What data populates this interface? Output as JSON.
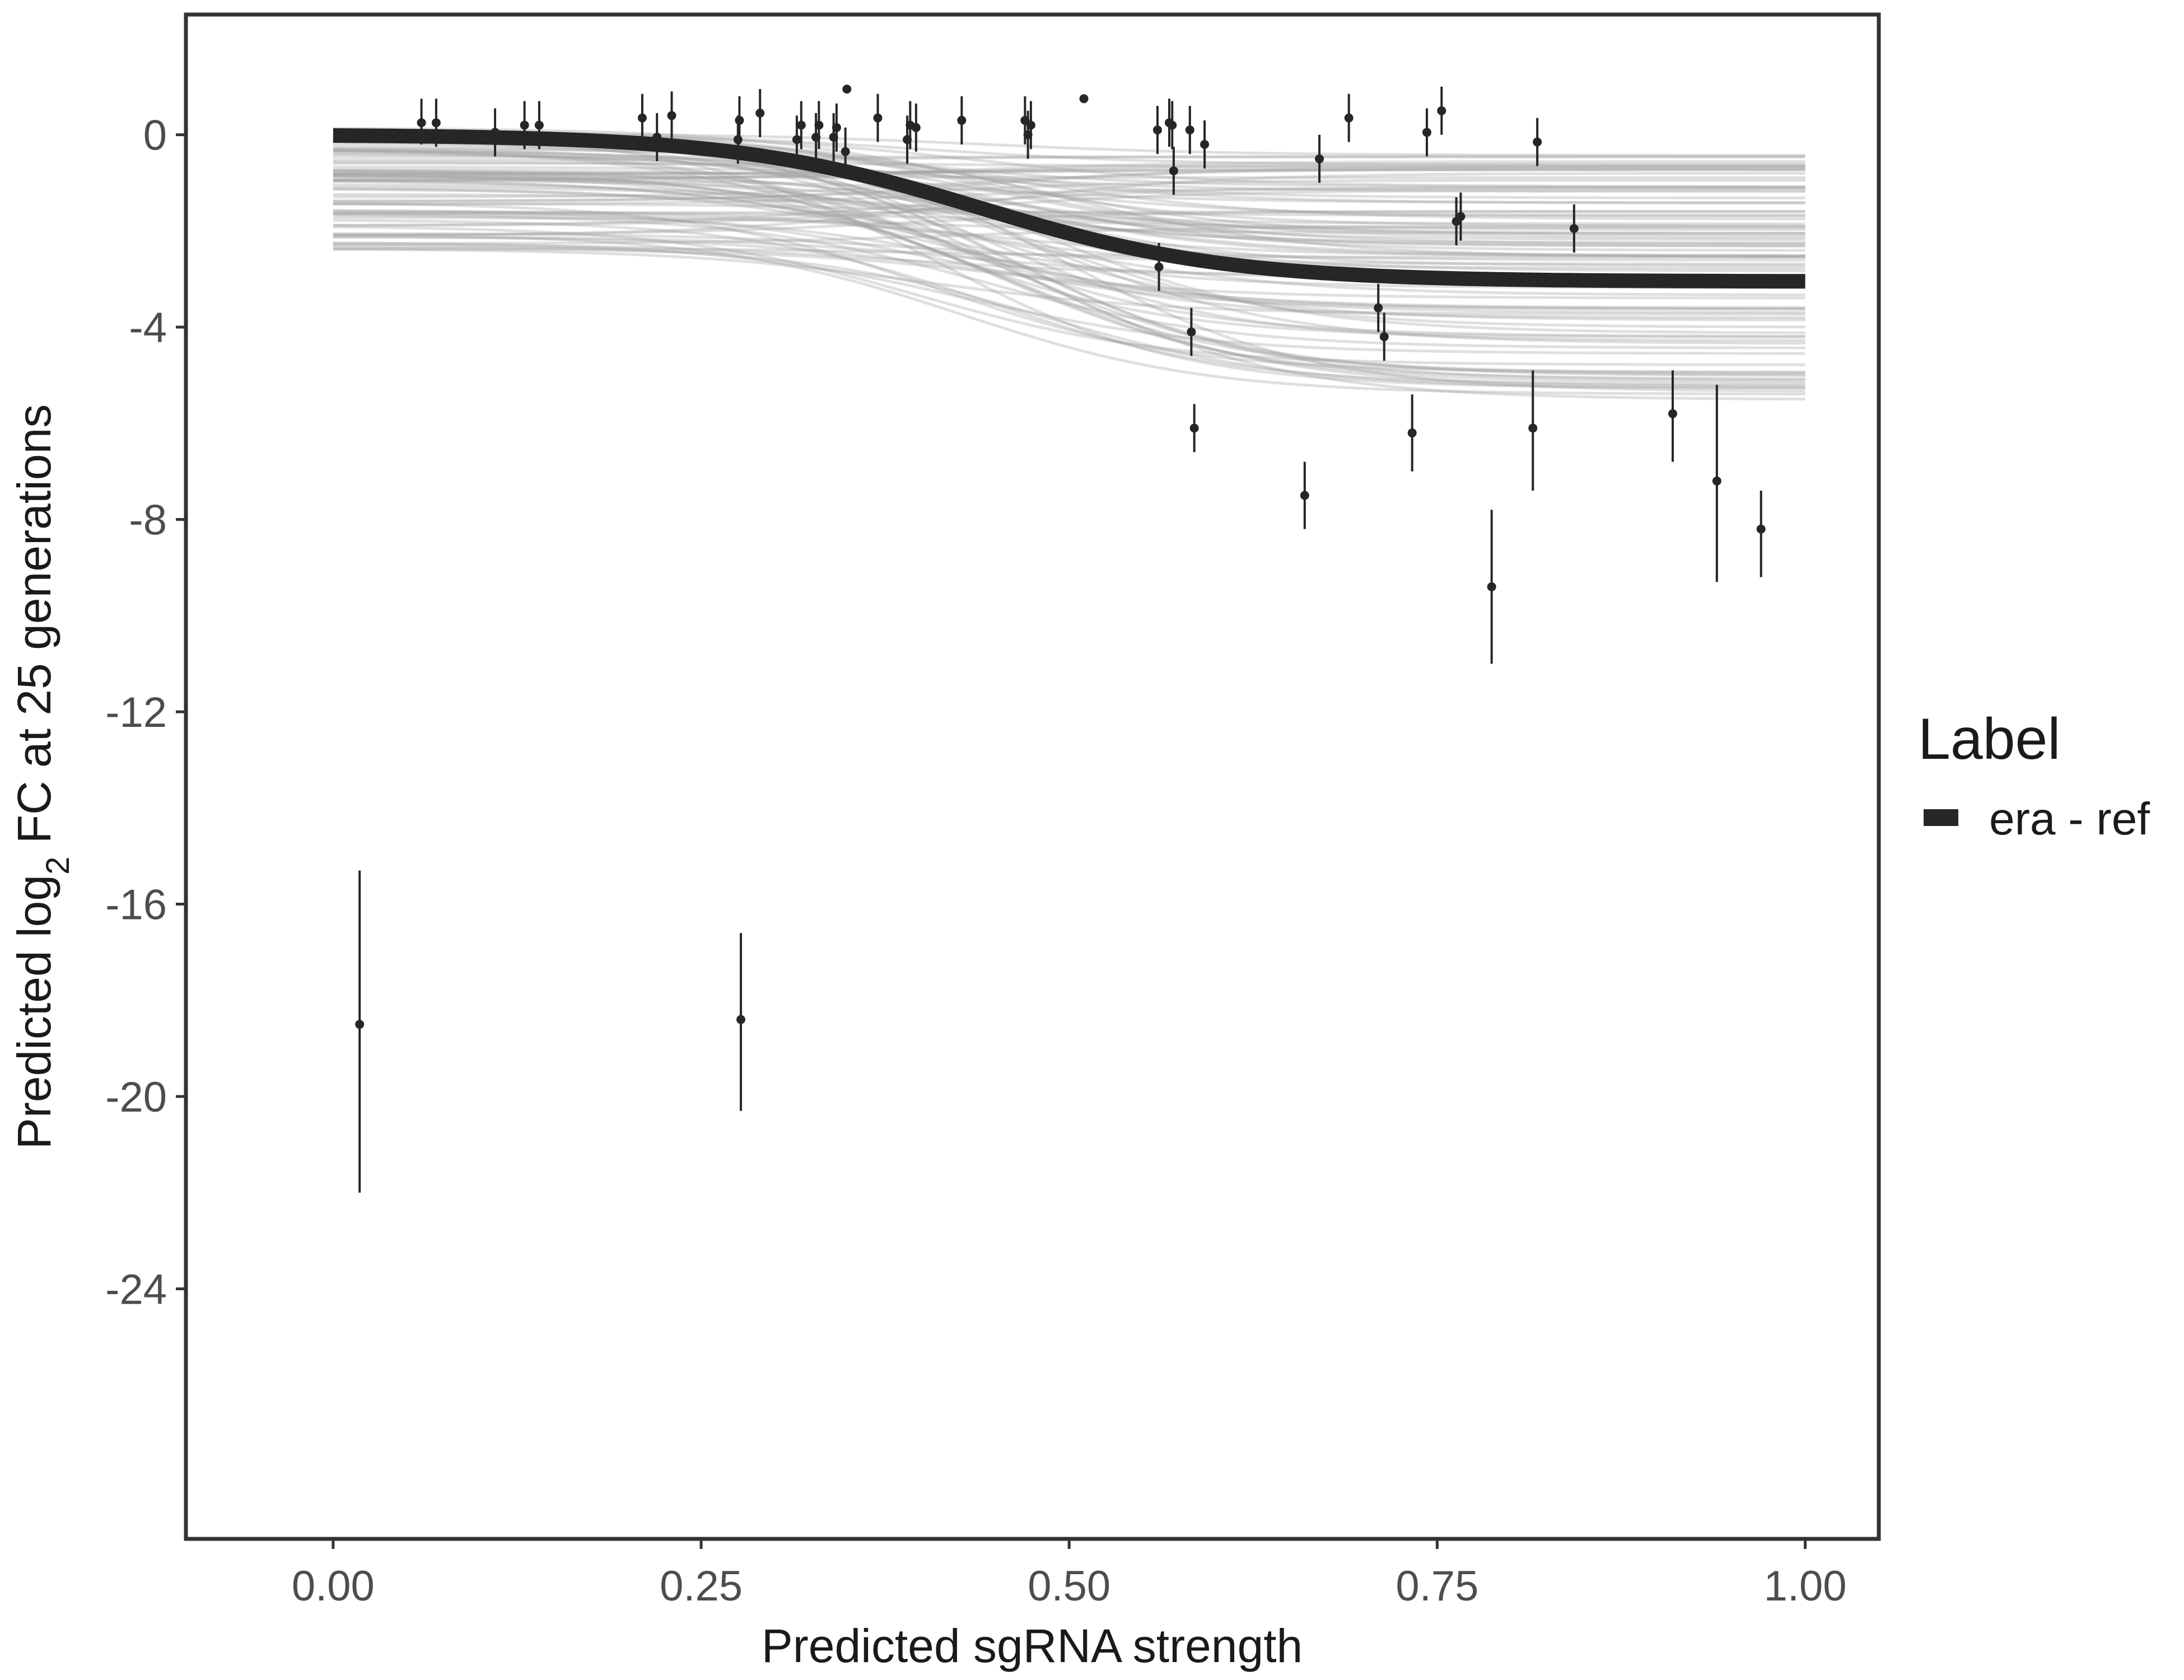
{
  "chart_data": {
    "type": "scatter",
    "title": "",
    "xlabel": "Predicted sgRNA strength",
    "ylabel": {
      "prefix": "Predicted  log",
      "subscript": "2",
      "suffix": " FC at 25 generations"
    },
    "xlim": [
      -0.1,
      1.05
    ],
    "ylim": [
      -29.2,
      2.5
    ],
    "x_ticks": [
      0,
      0.25,
      0.5,
      0.75,
      1
    ],
    "x_tick_labels": [
      "0.00",
      "0.25",
      "0.50",
      "0.75",
      "1.00"
    ],
    "y_ticks": [
      0,
      -4,
      -8,
      -12,
      -16,
      -20,
      -24
    ],
    "y_tick_labels": [
      "0",
      "-4",
      "-8",
      "-12",
      "-16",
      "-20",
      "-24"
    ],
    "grid": false,
    "legend": {
      "title": "Label",
      "position": "right",
      "entries": [
        {
          "label": "era - ref",
          "color": "#262626"
        }
      ]
    },
    "fit_line": {
      "name": "era - ref",
      "color": "#262626",
      "start": 0.0,
      "end": -3.05,
      "midpoint": 0.44,
      "steepness": 12
    },
    "posterior_band": {
      "color": "#a3a3a3",
      "upper_start": 0.15,
      "upper_end": -0.35,
      "lower_start": -2.4,
      "lower_end": -5.7
    },
    "points": [
      {
        "x": 0.018,
        "y": -18.5,
        "lo": -22.0,
        "hi": -15.3
      },
      {
        "x": 0.06,
        "y": 0.25,
        "lo": -0.2,
        "hi": 0.75
      },
      {
        "x": 0.07,
        "y": 0.25,
        "lo": -0.25,
        "hi": 0.75
      },
      {
        "x": 0.11,
        "y": 0.05,
        "lo": -0.45,
        "hi": 0.55
      },
      {
        "x": 0.13,
        "y": 0.2,
        "lo": -0.3,
        "hi": 0.7
      },
      {
        "x": 0.14,
        "y": 0.2,
        "lo": -0.3,
        "hi": 0.7
      },
      {
        "x": 0.21,
        "y": 0.35,
        "lo": -0.2,
        "hi": 0.85
      },
      {
        "x": 0.22,
        "y": -0.05,
        "lo": -0.55,
        "hi": 0.45
      },
      {
        "x": 0.23,
        "y": 0.4,
        "lo": -0.1,
        "hi": 0.9
      },
      {
        "x": 0.275,
        "y": -0.1,
        "lo": -0.6,
        "hi": 0.4
      },
      {
        "x": 0.276,
        "y": 0.3,
        "lo": -0.2,
        "hi": 0.8
      },
      {
        "x": 0.277,
        "y": -18.4,
        "lo": -20.3,
        "hi": -16.6
      },
      {
        "x": 0.29,
        "y": 0.45,
        "lo": -0.05,
        "hi": 0.95
      },
      {
        "x": 0.315,
        "y": -0.1,
        "lo": -0.6,
        "hi": 0.4
      },
      {
        "x": 0.318,
        "y": 0.2,
        "lo": -0.3,
        "hi": 0.7
      },
      {
        "x": 0.328,
        "y": -0.05,
        "lo": -0.55,
        "hi": 0.45
      },
      {
        "x": 0.33,
        "y": 0.2,
        "lo": -0.3,
        "hi": 0.7
      },
      {
        "x": 0.34,
        "y": -0.05,
        "lo": -0.55,
        "hi": 0.45
      },
      {
        "x": 0.342,
        "y": 0.15,
        "lo": -0.35,
        "hi": 0.65
      },
      {
        "x": 0.348,
        "y": -0.35,
        "lo": -0.85,
        "hi": 0.15
      },
      {
        "x": 0.349,
        "y": 0.95,
        "lo": 0.9,
        "hi": 1.0
      },
      {
        "x": 0.37,
        "y": 0.35,
        "lo": -0.15,
        "hi": 0.85
      },
      {
        "x": 0.39,
        "y": -0.1,
        "lo": -0.6,
        "hi": 0.4
      },
      {
        "x": 0.392,
        "y": 0.2,
        "lo": -0.3,
        "hi": 0.7
      },
      {
        "x": 0.396,
        "y": 0.15,
        "lo": -0.35,
        "hi": 0.65
      },
      {
        "x": 0.427,
        "y": 0.3,
        "lo": -0.2,
        "hi": 0.8
      },
      {
        "x": 0.47,
        "y": 0.3,
        "lo": -0.2,
        "hi": 0.8
      },
      {
        "x": 0.472,
        "y": 0.0,
        "lo": -0.5,
        "hi": 0.5
      },
      {
        "x": 0.474,
        "y": 0.2,
        "lo": -0.3,
        "hi": 0.7
      },
      {
        "x": 0.51,
        "y": 0.75,
        "lo": 0.7,
        "hi": 0.8
      },
      {
        "x": 0.56,
        "y": 0.1,
        "lo": -0.4,
        "hi": 0.6
      },
      {
        "x": 0.561,
        "y": -2.75,
        "lo": -3.25,
        "hi": -2.25
      },
      {
        "x": 0.568,
        "y": 0.25,
        "lo": -0.25,
        "hi": 0.75
      },
      {
        "x": 0.57,
        "y": 0.2,
        "lo": -0.3,
        "hi": 0.7
      },
      {
        "x": 0.571,
        "y": -0.75,
        "lo": -1.25,
        "hi": -0.25
      },
      {
        "x": 0.582,
        "y": 0.1,
        "lo": -0.4,
        "hi": 0.6
      },
      {
        "x": 0.583,
        "y": -4.1,
        "lo": -4.6,
        "hi": -3.6
      },
      {
        "x": 0.585,
        "y": -6.1,
        "lo": -6.6,
        "hi": -5.6
      },
      {
        "x": 0.592,
        "y": -0.2,
        "lo": -0.7,
        "hi": 0.3
      },
      {
        "x": 0.66,
        "y": -7.5,
        "lo": -8.2,
        "hi": -6.8
      },
      {
        "x": 0.67,
        "y": -0.5,
        "lo": -1.0,
        "hi": 0.0
      },
      {
        "x": 0.69,
        "y": 0.35,
        "lo": -0.15,
        "hi": 0.85
      },
      {
        "x": 0.71,
        "y": -3.6,
        "lo": -4.1,
        "hi": -3.1
      },
      {
        "x": 0.714,
        "y": -4.2,
        "lo": -4.7,
        "hi": -3.7
      },
      {
        "x": 0.733,
        "y": -6.2,
        "lo": -7.0,
        "hi": -5.4
      },
      {
        "x": 0.743,
        "y": 0.05,
        "lo": -0.45,
        "hi": 0.55
      },
      {
        "x": 0.753,
        "y": 0.5,
        "lo": 0.0,
        "hi": 1.0
      },
      {
        "x": 0.763,
        "y": -1.8,
        "lo": -2.3,
        "hi": -1.3
      },
      {
        "x": 0.766,
        "y": -1.7,
        "lo": -2.2,
        "hi": -1.2
      },
      {
        "x": 0.787,
        "y": -9.4,
        "lo": -11.0,
        "hi": -7.8
      },
      {
        "x": 0.815,
        "y": -6.1,
        "lo": -7.4,
        "hi": -4.9
      },
      {
        "x": 0.818,
        "y": -0.15,
        "lo": -0.65,
        "hi": 0.35
      },
      {
        "x": 0.843,
        "y": -1.95,
        "lo": -2.45,
        "hi": -1.45
      },
      {
        "x": 0.91,
        "y": -5.8,
        "lo": -6.8,
        "hi": -4.9
      },
      {
        "x": 0.94,
        "y": -7.2,
        "lo": -9.3,
        "hi": -5.2
      },
      {
        "x": 0.97,
        "y": -8.2,
        "lo": -9.2,
        "hi": -7.4
      }
    ]
  }
}
